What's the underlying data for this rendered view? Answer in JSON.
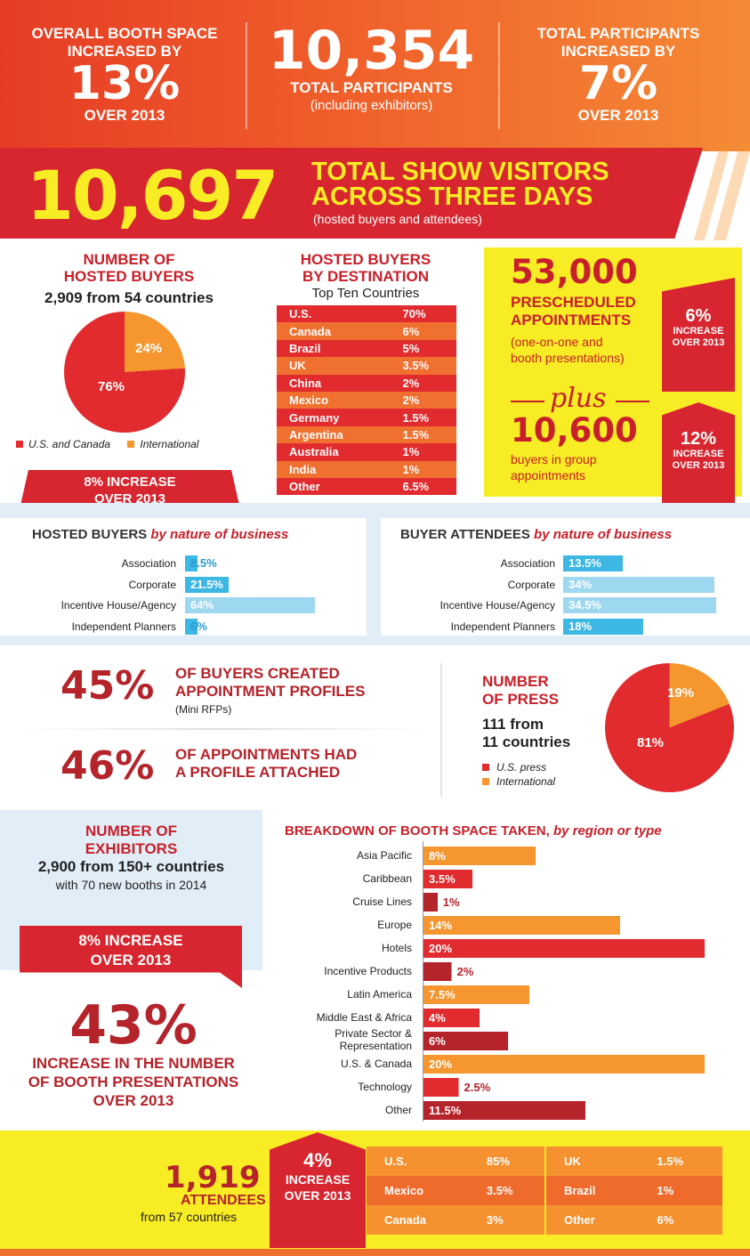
{
  "top": {
    "booth": {
      "line1": "OVERALL BOOTH SPACE",
      "line2": "INCREASED BY",
      "pct": "13%",
      "period": "OVER 2013"
    },
    "participants": {
      "value": "10,354",
      "label": "TOTAL PARTICIPANTS",
      "note": "(including exhibitors)"
    },
    "total_part": {
      "line1": "TOTAL PARTICIPANTS",
      "line2": "INCREASED BY",
      "pct": "7%",
      "period": "OVER 2013"
    }
  },
  "visitors": {
    "value": "10,697",
    "line1": "TOTAL SHOW VISITORS",
    "line2": "ACROSS THREE DAYS",
    "note": "(hosted buyers and attendees)"
  },
  "hosted": {
    "title1": "NUMBER OF",
    "title2": "HOSTED BUYERS",
    "subtitle": "2,909 from 54 countries",
    "pie": [
      {
        "label": "76%",
        "value": 76,
        "color": "#e12b2f"
      },
      {
        "label": "24%",
        "value": 24,
        "color": "#f5962f"
      }
    ],
    "legend": [
      "U.S. and Canada",
      "International"
    ],
    "increase1": "8% INCREASE",
    "increase2": "OVER 2013"
  },
  "destination": {
    "title1": "HOSTED BUYERS",
    "title2": "BY DESTINATION",
    "subtitle": "Top Ten Countries",
    "rows": [
      {
        "country": "U.S.",
        "pct": "70%"
      },
      {
        "country": "Canada",
        "pct": "6%"
      },
      {
        "country": "Brazil",
        "pct": "5%"
      },
      {
        "country": "UK",
        "pct": "3.5%"
      },
      {
        "country": "China",
        "pct": "2%"
      },
      {
        "country": "Mexico",
        "pct": "2%"
      },
      {
        "country": "Germany",
        "pct": "1.5%"
      },
      {
        "country": "Argentina",
        "pct": "1.5%"
      },
      {
        "country": "Australia",
        "pct": "1%"
      },
      {
        "country": "India",
        "pct": "1%"
      },
      {
        "country": "Other",
        "pct": "6.5%"
      }
    ]
  },
  "appointments": {
    "value": "53,000",
    "line1": "PRESCHEDULED",
    "line2": "APPOINTMENTS",
    "note1": "(one-on-one and",
    "note2": "booth presentations)",
    "inc_pct": "6%",
    "inc_label1": "INCREASE",
    "inc_label2": "OVER 2013",
    "plus": "plus",
    "group_value": "10,600",
    "group_line1": "buyers in group",
    "group_line2": "appointments",
    "group_inc_pct": "12%",
    "group_inc_label1": "INCREASE",
    "group_inc_label2": "OVER 2013"
  },
  "hosted_nature": {
    "title": "HOSTED BUYERS",
    "title_em": "by nature of business",
    "bars": [
      {
        "label": "Association",
        "pct": "8.5%",
        "value": 8.5
      },
      {
        "label": "Corporate",
        "pct": "21.5%",
        "value": 21.5
      },
      {
        "label": "Incentive House/Agency",
        "pct": "64%",
        "value": 64
      },
      {
        "label": "Independent Planners",
        "pct": "6%",
        "value": 6
      }
    ]
  },
  "attendee_nature": {
    "title": "BUYER ATTENDEES",
    "title_em": "by nature of business",
    "bars": [
      {
        "label": "Association",
        "pct": "13.5%",
        "value": 13.5
      },
      {
        "label": "Corporate",
        "pct": "34%",
        "value": 34
      },
      {
        "label": "Incentive House/Agency",
        "pct": "34.5%",
        "value": 34.5
      },
      {
        "label": "Independent Planners",
        "pct": "18%",
        "value": 18
      }
    ]
  },
  "profiles": {
    "pct1": "45%",
    "line1a": "OF BUYERS CREATED",
    "line1b": "APPOINTMENT PROFILES",
    "note1": "(Mini RFPs)",
    "pct2": "46%",
    "line2a": "OF APPOINTMENTS HAD",
    "line2b": "A PROFILE ATTACHED"
  },
  "press": {
    "title1": "NUMBER",
    "title2": "OF PRESS",
    "sub1": "111 from",
    "sub2": "11 countries",
    "pie": [
      {
        "label": "81%",
        "value": 81,
        "color": "#e12b2f"
      },
      {
        "label": "19%",
        "value": 19,
        "color": "#f5962f"
      }
    ],
    "legend": [
      "U.S. press",
      "International"
    ]
  },
  "exhibitors": {
    "title1": "NUMBER OF",
    "title2": "EXHIBITORS",
    "sub": "2,900 from 150+ countries",
    "note": "with 70 new booths in 2014",
    "increase1": "8% INCREASE",
    "increase2": "OVER 2013",
    "big_pct": "43%",
    "big1": "INCREASE IN THE NUMBER",
    "big2": "OF BOOTH PRESENTATIONS",
    "big3": "OVER 2013"
  },
  "booth": {
    "title": "BREAKDOWN OF BOOTH SPACE TAKEN,",
    "title_em": "by region or type",
    "bars": [
      {
        "label": "Asia Pacific",
        "pct": "8%",
        "value": 8,
        "color": "#f5962f"
      },
      {
        "label": "Caribbean",
        "pct": "3.5%",
        "value": 3.5,
        "color": "#e12b2f"
      },
      {
        "label": "Cruise Lines",
        "pct": "1%",
        "value": 1,
        "color": "#b5232b"
      },
      {
        "label": "Europe",
        "pct": "14%",
        "value": 14,
        "color": "#f5962f"
      },
      {
        "label": "Hotels",
        "pct": "20%",
        "value": 20,
        "color": "#e12b2f"
      },
      {
        "label": "Incentive Products",
        "pct": "2%",
        "value": 2,
        "color": "#b5232b"
      },
      {
        "label": "Latin America",
        "pct": "7.5%",
        "value": 7.5,
        "color": "#f5962f"
      },
      {
        "label": "Middle East & Africa",
        "pct": "4%",
        "value": 4,
        "color": "#e12b2f"
      },
      {
        "label": "Private Sector & Representation",
        "pct": "6%",
        "value": 6,
        "color": "#b5232b"
      },
      {
        "label": "U.S. & Canada",
        "pct": "20%",
        "value": 20,
        "color": "#f5962f"
      },
      {
        "label": "Technology",
        "pct": "2.5%",
        "value": 2.5,
        "color": "#e12b2f"
      },
      {
        "label": "Other",
        "pct": "11.5%",
        "value": 11.5,
        "color": "#b5232b"
      }
    ]
  },
  "attendees": {
    "value": "1,919",
    "label": "ATTENDEES",
    "sub": "from 57 countries",
    "inc_pct": "4%",
    "inc1": "INCREASE",
    "inc2": "OVER 2013",
    "left": [
      {
        "country": "U.S.",
        "pct": "85%"
      },
      {
        "country": "Mexico",
        "pct": "3.5%"
      },
      {
        "country": "Canada",
        "pct": "3%"
      }
    ],
    "right": [
      {
        "country": "UK",
        "pct": "1.5%"
      },
      {
        "country": "Brazil",
        "pct": "1%"
      },
      {
        "country": "Other",
        "pct": "6%"
      }
    ]
  }
}
